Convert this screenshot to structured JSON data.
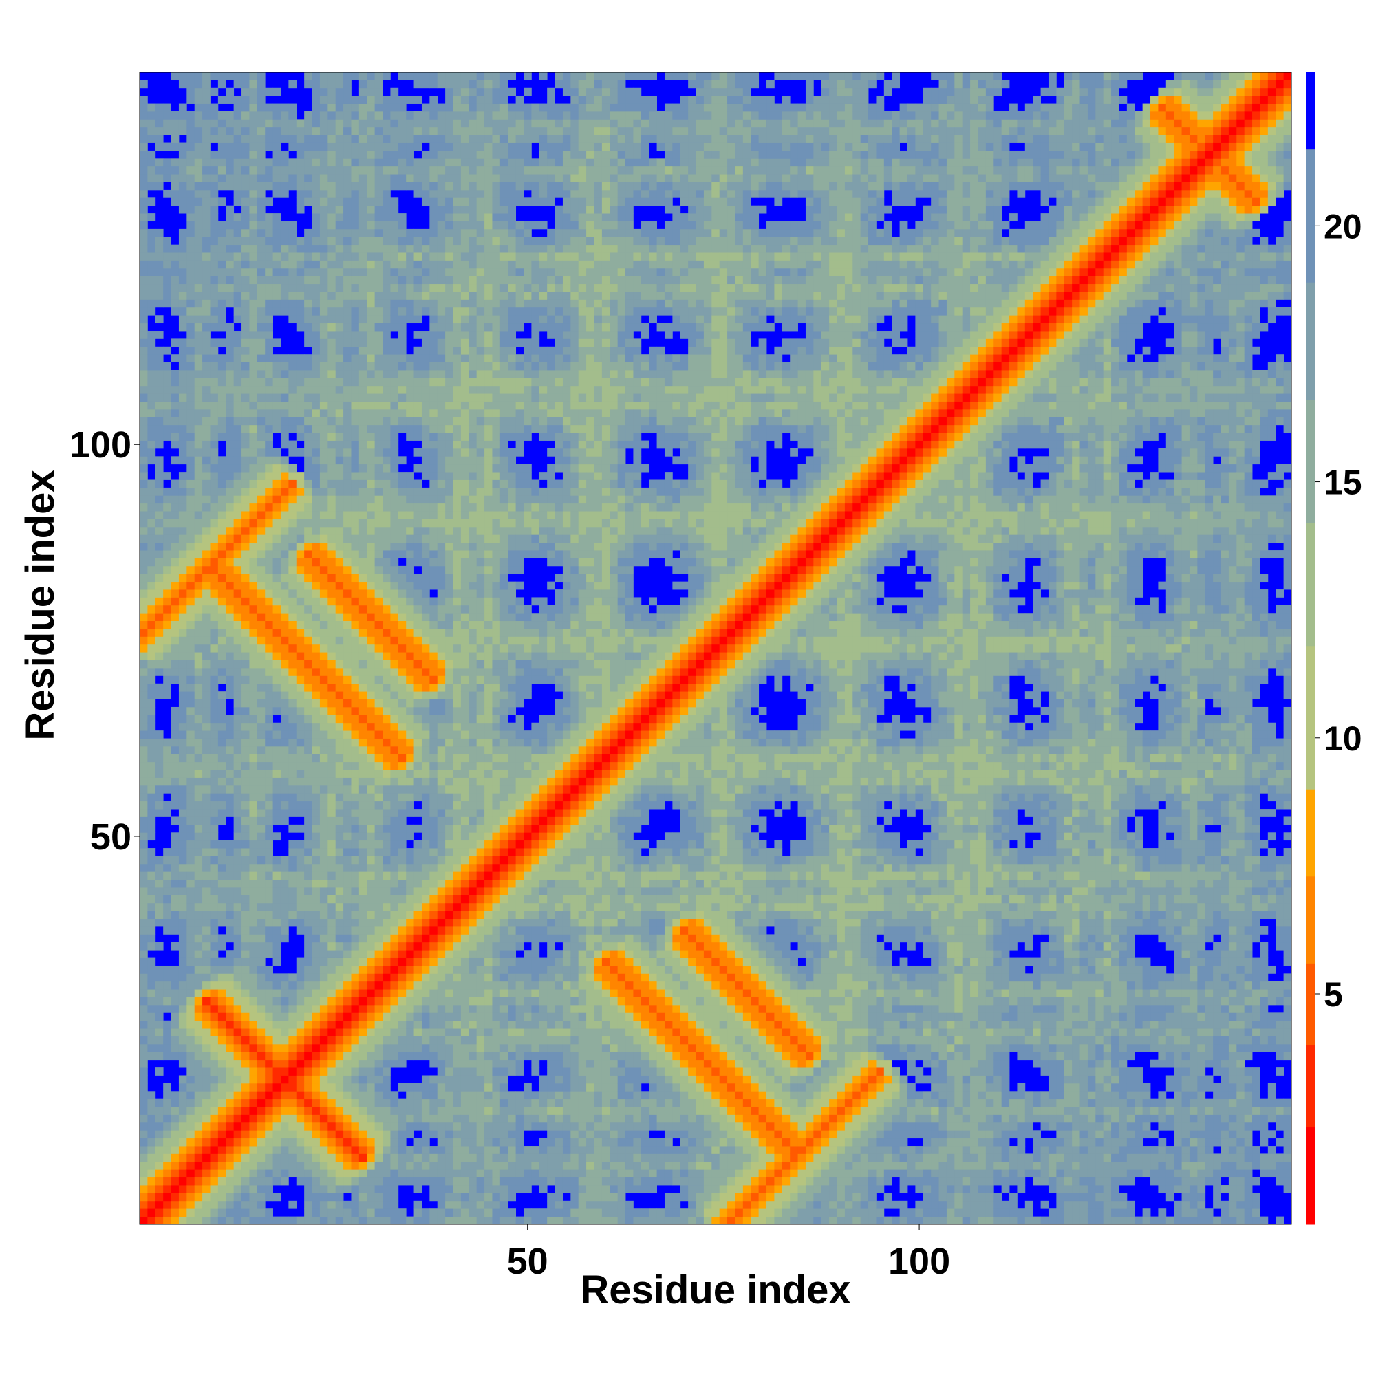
{
  "chart_data": {
    "type": "heatmap",
    "title": "",
    "xlabel": "Residue index",
    "ylabel": "Residue index",
    "n_residues": 147,
    "xlim": [
      1,
      147
    ],
    "ylim": [
      1,
      147
    ],
    "x_ticks": [
      {
        "value": 50,
        "label": "50"
      },
      {
        "value": 100,
        "label": "100"
      }
    ],
    "y_ticks": [
      {
        "value": 50,
        "label": "50"
      },
      {
        "value": 100,
        "label": "100"
      }
    ],
    "colorbar": {
      "range": [
        0.5,
        23
      ],
      "ticks": [
        {
          "value": 5,
          "label": "5"
        },
        {
          "value": 10,
          "label": "10"
        },
        {
          "value": 15,
          "label": "15"
        },
        {
          "value": 20,
          "label": "20"
        }
      ],
      "bins": [
        {
          "from": 0.5,
          "to": 2.4,
          "color": "#ff0000"
        },
        {
          "from": 2.4,
          "to": 4.0,
          "color": "#ff2a00"
        },
        {
          "from": 4.0,
          "to": 5.6,
          "color": "#ff5a00"
        },
        {
          "from": 5.6,
          "to": 7.3,
          "color": "#ff8500"
        },
        {
          "from": 7.3,
          "to": 9.0,
          "color": "#ffa500"
        },
        {
          "from": 9.0,
          "to": 11.8,
          "color": "#b5c47f"
        },
        {
          "from": 11.8,
          "to": 14.2,
          "color": "#a3bd8c"
        },
        {
          "from": 14.2,
          "to": 16.6,
          "color": "#8fad9e"
        },
        {
          "from": 16.6,
          "to": 18.9,
          "color": "#7f9fab"
        },
        {
          "from": 18.9,
          "to": 21.5,
          "color": "#6f92b7"
        },
        {
          "from": 21.5,
          "to": 23.0,
          "color": "#0000ff"
        }
      ]
    },
    "background_color": "#0000ff",
    "contact_features": [
      {
        "kind": "diagonal",
        "description": "self-contact diagonal, full length"
      },
      {
        "kind": "antiparallel",
        "center_i": 19,
        "center_j": 19,
        "half_len": 10,
        "dist": 3
      },
      {
        "kind": "antiparallel",
        "center_i": 72,
        "center_j": 22,
        "half_len": 12,
        "dist": 4
      },
      {
        "kind": "antiparallel",
        "center_i": 22,
        "center_j": 72,
        "half_len": 12,
        "dist": 4
      },
      {
        "kind": "antiparallel",
        "center_i": 30,
        "center_j": 78,
        "half_len": 8,
        "dist": 4
      },
      {
        "kind": "antiparallel",
        "center_i": 78,
        "center_j": 30,
        "half_len": 8,
        "dist": 4
      },
      {
        "kind": "antiparallel",
        "center_i": 137,
        "center_j": 137,
        "half_len": 6,
        "dist": 4
      },
      {
        "kind": "parallel",
        "center_i": 85,
        "center_j": 10,
        "half_len": 10,
        "dist": 5
      },
      {
        "kind": "parallel",
        "center_i": 10,
        "center_j": 85,
        "half_len": 10,
        "dist": 5
      }
    ]
  }
}
